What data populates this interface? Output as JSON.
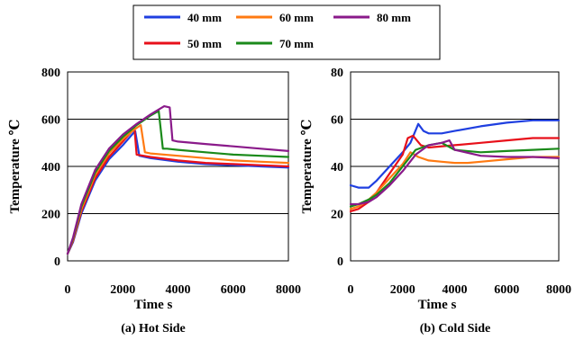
{
  "legend": [
    {
      "label": "40 mm",
      "color": "#1f3fe0"
    },
    {
      "label": "50 mm",
      "color": "#e8101a"
    },
    {
      "label": "60 mm",
      "color": "#ff7a12"
    },
    {
      "label": "70 mm",
      "color": "#1a8a1a"
    },
    {
      "label": "80 mm",
      "color": "#8a1a8a"
    }
  ],
  "chart_data": [
    {
      "type": "line",
      "caption": "(a) Hot Side",
      "xlabel": "Time s",
      "ylabel": "Temperature ℃",
      "xlim": [
        0,
        8000
      ],
      "ylim": [
        0,
        800
      ],
      "xticks": [
        "0",
        "2000",
        "4000",
        "6000",
        "8000"
      ],
      "yticks": [
        "0",
        "200",
        "400",
        "600",
        "800"
      ],
      "grid": "horizontal",
      "series": [
        {
          "name": "40 mm",
          "color": "#1f3fe0",
          "x": [
            0,
            200,
            500,
            1000,
            1500,
            2000,
            2300,
            2450,
            2600,
            3000,
            4000,
            5000,
            6000,
            7000,
            8000
          ],
          "y": [
            30,
            80,
            200,
            340,
            430,
            490,
            530,
            550,
            445,
            435,
            420,
            410,
            405,
            400,
            395
          ]
        },
        {
          "name": "50 mm",
          "color": "#e8101a",
          "x": [
            0,
            200,
            500,
            1000,
            1500,
            2000,
            2300,
            2420,
            2500,
            3000,
            4000,
            5000,
            6000,
            7000,
            8000
          ],
          "y": [
            30,
            85,
            210,
            350,
            440,
            505,
            545,
            565,
            450,
            440,
            425,
            415,
            410,
            405,
            400
          ]
        },
        {
          "name": "60 mm",
          "color": "#ff7a12",
          "x": [
            0,
            200,
            500,
            1000,
            1500,
            2000,
            2400,
            2650,
            2800,
            3000,
            4000,
            5000,
            6000,
            7000,
            8000
          ],
          "y": [
            30,
            90,
            220,
            365,
            455,
            515,
            555,
            575,
            460,
            455,
            445,
            435,
            425,
            420,
            415
          ]
        },
        {
          "name": "70 mm",
          "color": "#1a8a1a",
          "x": [
            0,
            200,
            500,
            1000,
            1500,
            2000,
            2500,
            3000,
            3300,
            3450,
            3600,
            4000,
            5000,
            6000,
            7000,
            8000
          ],
          "y": [
            30,
            95,
            230,
            375,
            465,
            525,
            575,
            615,
            635,
            475,
            475,
            470,
            460,
            450,
            445,
            440
          ]
        },
        {
          "name": "80 mm",
          "color": "#8a1a8a",
          "x": [
            0,
            200,
            500,
            1000,
            1500,
            2000,
            2500,
            3000,
            3500,
            3700,
            3800,
            4000,
            5000,
            6000,
            7000,
            8000
          ],
          "y": [
            30,
            100,
            240,
            385,
            475,
            535,
            580,
            620,
            655,
            650,
            510,
            505,
            495,
            485,
            475,
            465
          ]
        }
      ]
    },
    {
      "type": "line",
      "caption": "(b) Cold Side",
      "xlabel": "Time s",
      "ylabel": "Temperature ℃",
      "xlim": [
        0,
        8000
      ],
      "ylim": [
        0,
        80
      ],
      "xticks": [
        "0",
        "2000",
        "4000",
        "6000",
        "8000"
      ],
      "yticks": [
        "0",
        "20",
        "40",
        "60",
        "80"
      ],
      "grid": "horizontal",
      "series": [
        {
          "name": "40 mm",
          "color": "#1f3fe0",
          "x": [
            0,
            300,
            700,
            1000,
            1500,
            2000,
            2300,
            2600,
            2800,
            3000,
            3500,
            4000,
            5000,
            6000,
            7000,
            8000
          ],
          "y": [
            32,
            31,
            31,
            34,
            40,
            46,
            50,
            58,
            55,
            54,
            54,
            55,
            57,
            58.5,
            59.5,
            59.5
          ]
        },
        {
          "name": "50 mm",
          "color": "#e8101a",
          "x": [
            0,
            300,
            700,
            1000,
            1500,
            2000,
            2200,
            2400,
            2700,
            3000,
            4000,
            5000,
            6000,
            7000,
            8000
          ],
          "y": [
            21,
            22,
            25,
            29,
            37,
            45,
            52,
            53,
            49,
            48,
            49,
            50,
            51,
            52,
            52
          ]
        },
        {
          "name": "60 mm",
          "color": "#ff7a12",
          "x": [
            0,
            300,
            700,
            1000,
            1500,
            2000,
            2300,
            2600,
            3000,
            3500,
            4000,
            4500,
            5000,
            6000,
            7000,
            8000
          ],
          "y": [
            22,
            23,
            26,
            29,
            35,
            41,
            46,
            44,
            42.5,
            42,
            41.5,
            41.5,
            42,
            43,
            44,
            44
          ]
        },
        {
          "name": "70 mm",
          "color": "#1a8a1a",
          "x": [
            0,
            300,
            700,
            1000,
            1500,
            2000,
            2500,
            3000,
            3500,
            4000,
            5000,
            6000,
            7000,
            8000
          ],
          "y": [
            23,
            24,
            26,
            28,
            33,
            40,
            47,
            49,
            50,
            47,
            46,
            46.5,
            47,
            47.5
          ]
        },
        {
          "name": "80 mm",
          "color": "#8a1a8a",
          "x": [
            0,
            300,
            700,
            1000,
            1500,
            2000,
            2500,
            3000,
            3500,
            3800,
            4000,
            5000,
            6000,
            7000,
            8000
          ],
          "y": [
            24,
            24,
            25,
            27,
            32,
            38,
            45,
            49,
            50,
            51,
            47,
            44.5,
            44,
            44,
            43.5
          ]
        }
      ]
    }
  ]
}
